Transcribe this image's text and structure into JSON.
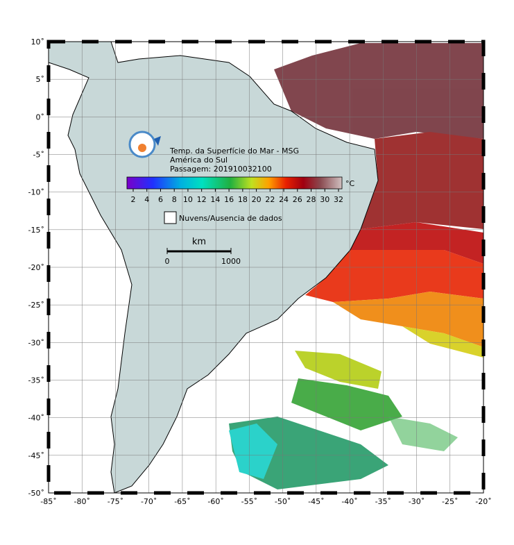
{
  "title": {
    "lines": [
      "Temp. da Superfície do Mar - MSG",
      "América do Sul",
      "Passagem: 201910032100"
    ]
  },
  "colorbar": {
    "unit": "°C",
    "ticks": [
      2,
      4,
      6,
      8,
      10,
      12,
      14,
      16,
      18,
      20,
      22,
      24,
      26,
      28,
      30,
      32
    ]
  },
  "legend": {
    "label": "Nuvens/Ausencia de dados"
  },
  "scale_bar": {
    "unit": "km",
    "start": 0,
    "end": 1000
  },
  "axes": {
    "latitude_labels": [
      "10˚",
      "5˚",
      "0˚",
      "-5˚",
      "-10˚",
      "-15˚",
      "-20˚",
      "-25˚",
      "-30˚",
      "-35˚",
      "-40˚",
      "-45˚",
      "-50˚"
    ],
    "longitude_labels": [
      "-85˚",
      "-80˚",
      "-75˚",
      "-70˚",
      "-65˚",
      "-60˚",
      "-55˚",
      "-50˚",
      "-45˚",
      "-40˚",
      "-35˚",
      "-30˚",
      "-25˚",
      "-20˚"
    ]
  }
}
